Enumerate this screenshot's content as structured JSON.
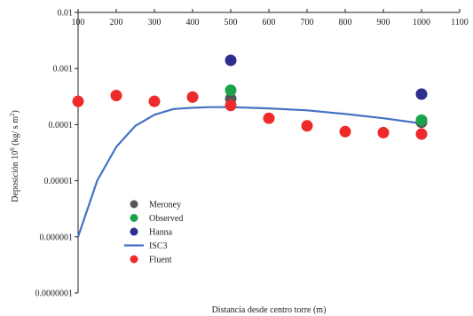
{
  "chart_data": {
    "type": "scatter",
    "title": "",
    "xlabel": "Distancia desde centro torre (m)",
    "ylabel_main": "Deposición  10",
    "ylabel_sup": "6",
    "ylabel_unit": " (kg/ s m",
    "ylabel_unit_sup": "2",
    "ylabel_close": ")",
    "x_scale": "linear",
    "y_scale": "log",
    "xlim": [
      100,
      1100
    ],
    "ylim": [
      1e-07,
      0.01
    ],
    "x_ticks": [
      100,
      200,
      300,
      400,
      500,
      600,
      700,
      800,
      900,
      1000,
      1100
    ],
    "x_tick_labels": [
      "100",
      "200",
      "300",
      "400",
      "500",
      "600",
      "700",
      "800",
      "900",
      "1000",
      "1100"
    ],
    "y_ticks": [
      0.01,
      0.001,
      0.0001,
      1e-05,
      1e-06,
      1e-07
    ],
    "y_tick_labels": [
      "0.01",
      "0.001",
      "0.0001",
      "0.00001",
      "0.000001",
      "0.0000001"
    ],
    "x_axis_position": "top",
    "grid": false,
    "legend_position": "lower-left inside",
    "legend": [
      {
        "name": "Meroney",
        "kind": "marker",
        "color": "#555555"
      },
      {
        "name": "Observed",
        "kind": "marker",
        "color": "#1aa34a"
      },
      {
        "name": "Hanna",
        "kind": "marker",
        "color": "#2e2e8c"
      },
      {
        "name": "ISC3",
        "kind": "line",
        "color": "#4472c4"
      },
      {
        "name": "Fluent",
        "kind": "marker",
        "color": "#ee2a2a"
      }
    ],
    "series": [
      {
        "name": "Meroney",
        "kind": "marker",
        "color": "#555555",
        "points": [
          [
            500,
            0.00029
          ],
          [
            1000,
            0.00011
          ]
        ]
      },
      {
        "name": "Observed",
        "kind": "marker",
        "color": "#1aa34a",
        "points": [
          [
            500,
            0.00041
          ],
          [
            1000,
            0.00012
          ]
        ]
      },
      {
        "name": "Hanna",
        "kind": "marker",
        "color": "#2e2e8c",
        "points": [
          [
            500,
            0.0014
          ],
          [
            1000,
            0.00035
          ]
        ]
      },
      {
        "name": "ISC3",
        "kind": "line",
        "color": "#4472c4",
        "points": [
          [
            100,
            1e-06
          ],
          [
            150,
            1e-05
          ],
          [
            200,
            4e-05
          ],
          [
            250,
            9.5e-05
          ],
          [
            300,
            0.00015
          ],
          [
            350,
            0.00019
          ],
          [
            400,
            0.0002
          ],
          [
            450,
            0.000205
          ],
          [
            500,
            0.000205
          ],
          [
            600,
            0.000195
          ],
          [
            700,
            0.00018
          ],
          [
            800,
            0.000155
          ],
          [
            900,
            0.00013
          ],
          [
            1000,
            0.000105
          ]
        ]
      },
      {
        "name": "Fluent",
        "kind": "marker",
        "color": "#ee2a2a",
        "points": [
          [
            100,
            0.00026
          ],
          [
            200,
            0.00033
          ],
          [
            300,
            0.00026
          ],
          [
            400,
            0.00031
          ],
          [
            500,
            0.00022
          ],
          [
            600,
            0.00013
          ],
          [
            700,
            9.5e-05
          ],
          [
            800,
            7.5e-05
          ],
          [
            900,
            7.2e-05
          ],
          [
            1000,
            6.8e-05
          ]
        ]
      }
    ]
  }
}
